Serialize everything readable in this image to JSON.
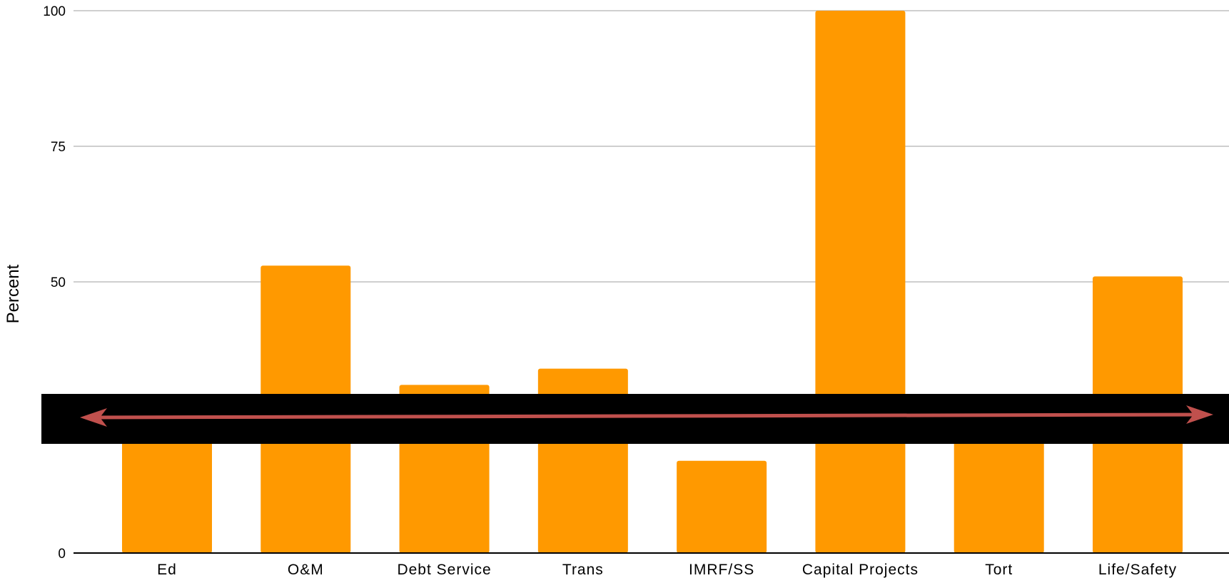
{
  "chart_data": {
    "type": "bar",
    "title": "",
    "xlabel": "",
    "ylabel": "Percent",
    "ylim": [
      0,
      100
    ],
    "yticks": [
      0,
      50,
      75,
      100
    ],
    "grid": true,
    "categories": [
      "Ed",
      "O&M",
      "Debt Service",
      "Trans",
      "IMRF/SS",
      "Capital Projects",
      "Tort",
      "Life/Safety"
    ],
    "values": [
      28,
      53,
      31,
      34,
      17,
      100,
      24,
      51
    ],
    "colors": {
      "bar": "#FF9900",
      "grid": "#BFBFBF",
      "axis": "#000000",
      "band": "#000000",
      "arrow": "#C0504D"
    },
    "annotation": {
      "type": "double-arrow-band",
      "y_value": 25
    }
  }
}
